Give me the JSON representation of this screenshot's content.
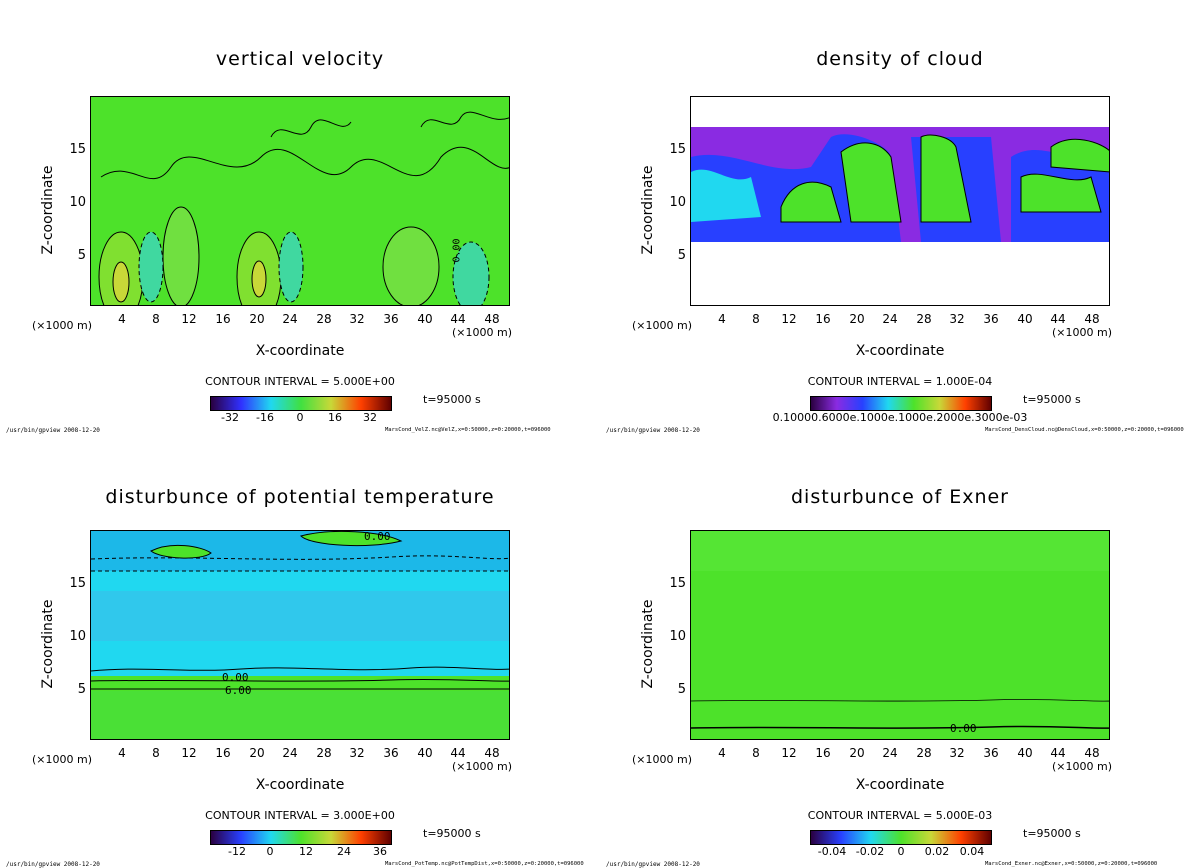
{
  "colors": {
    "green": "#4de22a",
    "green_light": "#6af04a",
    "cyan": "#20d8f0",
    "purple": "#8a2be2",
    "blue": "#2840ff"
  },
  "chart_data": [
    {
      "type": "heatmap",
      "title": "vertical velocity",
      "xlabel": "X-coordinate",
      "ylabel": "Z-coordinate",
      "x_unit_left": "(×1000 m)",
      "x_unit_right": "(×1000 m)",
      "xlim": [
        0,
        50
      ],
      "ylim": [
        0,
        20
      ],
      "xticks": [
        "4",
        "8",
        "12",
        "16",
        "20",
        "24",
        "28",
        "32",
        "36",
        "40",
        "44",
        "48"
      ],
      "yticks": [
        "5",
        "10",
        "15"
      ],
      "contour_labels": [
        "0.00"
      ],
      "contour_interval": "CONTOUR INTERVAL = 5.000E+00",
      "colorbar_ticks": [
        "-32",
        "-16",
        "0",
        "16",
        "32"
      ],
      "time": "t=95000 s",
      "footer_left": "/usr/bin/gpview  2008-12-20",
      "footer_right": "MarsCond_VelZ.nc@VelZ,x=0:50000,z=0:20000,t=096000"
    },
    {
      "type": "heatmap",
      "title": "density of cloud",
      "xlabel": "X-coordinate",
      "ylabel": "Z-coordinate",
      "x_unit_left": "(×1000 m)",
      "x_unit_right": "(×1000 m)",
      "xlim": [
        0,
        50
      ],
      "ylim": [
        0,
        20
      ],
      "xticks": [
        "4",
        "8",
        "12",
        "16",
        "20",
        "24",
        "28",
        "32",
        "36",
        "40",
        "44",
        "48"
      ],
      "yticks": [
        "5",
        "10",
        "15"
      ],
      "contour_labels": [],
      "contour_interval": "CONTOUR INTERVAL = 1.000E-04",
      "colorbar_ticks": [
        "0.10000.6000e.1000e.1000e.2000e.3000e-03"
      ],
      "time": "t=95000 s",
      "footer_left": "/usr/bin/gpview  2008-12-20",
      "footer_right": "MarsCond_DensCloud.nc@DensCloud,x=0:50000,z=0:20000,t=096000"
    },
    {
      "type": "heatmap",
      "title": "disturbunce of potential temperature",
      "xlabel": "X-coordinate",
      "ylabel": "Z-coordinate",
      "x_unit_left": "(×1000 m)",
      "x_unit_right": "(×1000 m)",
      "xlim": [
        0,
        50
      ],
      "ylim": [
        0,
        20
      ],
      "xticks": [
        "4",
        "8",
        "12",
        "16",
        "20",
        "24",
        "28",
        "32",
        "36",
        "40",
        "44",
        "48"
      ],
      "yticks": [
        "5",
        "10",
        "15"
      ],
      "contour_labels": [
        "0.00",
        "0.00",
        "6.00"
      ],
      "contour_interval": "CONTOUR INTERVAL = 3.000E+00",
      "colorbar_ticks": [
        "-12",
        "0",
        "12",
        "24",
        "36"
      ],
      "time": "t=95000 s",
      "footer_left": "/usr/bin/gpview  2008-12-20",
      "footer_right": "MarsCond_PotTemp.nc@PotTempDist,x=0:50000,z=0:20000,t=096000"
    },
    {
      "type": "heatmap",
      "title": "disturbunce of Exner",
      "xlabel": "X-coordinate",
      "ylabel": "Z-coordinate",
      "x_unit_left": "(×1000 m)",
      "x_unit_right": "(×1000 m)",
      "xlim": [
        0,
        50
      ],
      "ylim": [
        0,
        20
      ],
      "xticks": [
        "4",
        "8",
        "12",
        "16",
        "20",
        "24",
        "28",
        "32",
        "36",
        "40",
        "44",
        "48"
      ],
      "yticks": [
        "5",
        "10",
        "15"
      ],
      "contour_labels": [
        "0.00"
      ],
      "contour_interval": "CONTOUR INTERVAL = 5.000E-03",
      "colorbar_ticks": [
        "-0.04",
        "-0.02",
        "0",
        "0.02",
        "0.04"
      ],
      "time": "t=95000 s",
      "footer_left": "/usr/bin/gpview  2008-12-20",
      "footer_right": "MarsCond_Exner.nc@Exner,x=0:50000,z=0:20000,t=096000"
    }
  ]
}
